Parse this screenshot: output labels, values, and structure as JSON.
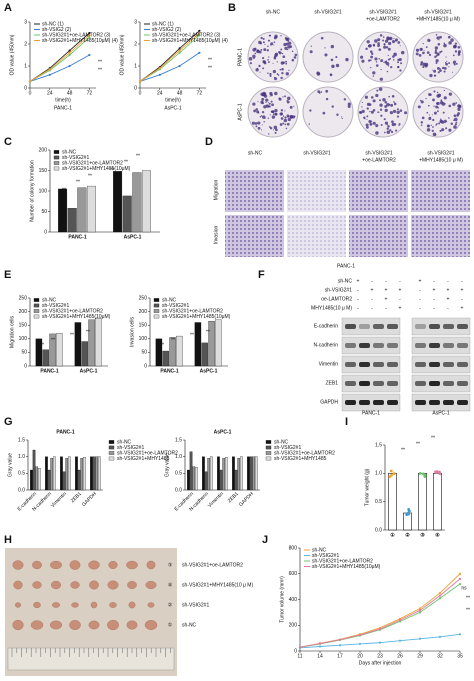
{
  "panel_labels": [
    "A",
    "B",
    "C",
    "D",
    "E",
    "F",
    "G",
    "H",
    "I",
    "J"
  ],
  "chart_data": [
    {
      "type": "line",
      "y_label": "OD value (450nm)",
      "x_label": "time(h)",
      "caption": "PANC-1",
      "x": [
        0,
        24,
        48,
        72
      ],
      "xlim": [
        0,
        80
      ],
      "xticks": [
        0,
        24,
        48,
        72
      ],
      "ylim": [
        0,
        3
      ],
      "yticks": [
        0,
        1,
        2,
        3
      ],
      "legend": "upper left",
      "series": [
        {
          "name": "sh-NC (1)",
          "color": "#222222",
          "values": [
            0.3,
            0.9,
            1.7,
            2.5
          ]
        },
        {
          "name": "sh-VSIG2 (2)",
          "color": "#3a7bd5",
          "values": [
            0.3,
            0.6,
            1.0,
            1.5
          ]
        },
        {
          "name": "sh-VSIG2#1+oe-LAMTOR2 (3)",
          "color": "#6cc46c",
          "values": [
            0.3,
            0.8,
            1.5,
            2.3
          ]
        },
        {
          "name": "sh-VSIG2#1+MHY1485(10μM) (4)",
          "color": "#f0a030",
          "values": [
            0.3,
            0.85,
            1.6,
            2.4
          ]
        }
      ],
      "annotations": [
        "**",
        "**"
      ]
    },
    {
      "type": "line",
      "y_label": "OD value (450nm)",
      "x_label": "time(h)",
      "caption": "AsPC-1",
      "x": [
        0,
        24,
        48,
        72
      ],
      "xlim": [
        0,
        80
      ],
      "xticks": [
        0,
        24,
        48,
        72
      ],
      "ylim": [
        0,
        3
      ],
      "yticks": [
        0,
        1,
        2,
        3
      ],
      "legend": "upper left",
      "series": [
        {
          "name": "sh-NC (1)",
          "color": "#222222",
          "values": [
            0.3,
            0.95,
            1.8,
            2.6
          ]
        },
        {
          "name": "sh-VSIG2 (2)",
          "color": "#3a7bd5",
          "values": [
            0.3,
            0.6,
            1.0,
            1.6
          ]
        },
        {
          "name": "sh-VSIG2#1+oe-LAMTOR2 (3)",
          "color": "#6cc46c",
          "values": [
            0.3,
            0.85,
            1.6,
            2.4
          ]
        },
        {
          "name": "sh-VSIG2#1+MHY1485(10μM) (4)",
          "color": "#f0a030",
          "values": [
            0.3,
            0.9,
            1.7,
            2.5
          ]
        }
      ],
      "annotations": [
        "**",
        "**"
      ]
    },
    {
      "type": "bar",
      "y_label": "Number of colony formation",
      "categories": [
        "PANC-1",
        "AsPC-1"
      ],
      "ylim": [
        0,
        200
      ],
      "yticks": [
        0,
        50,
        100,
        150,
        200
      ],
      "legend": "upper left",
      "series": [
        {
          "name": "sh-NC",
          "color": "#111111",
          "values": [
            105,
            148
          ]
        },
        {
          "name": "sh-VSIG2#1",
          "color": "#555555",
          "values": [
            58,
            88
          ]
        },
        {
          "name": "sh-VSIG2#1+oe-LAMTOR2",
          "color": "#999999",
          "values": [
            108,
            145
          ]
        },
        {
          "name": "sh-VSIG2#1+MHY1485(10μM)",
          "color": "#dddddd",
          "values": [
            112,
            150
          ]
        }
      ],
      "annotations": [
        "**",
        "**",
        "**",
        "**",
        "**",
        "**"
      ]
    },
    {
      "type": "bar",
      "y_label": "Migration cells",
      "categories": [
        "PANC-1",
        "AsPC-1"
      ],
      "ylim": [
        0,
        250
      ],
      "yticks": [
        0,
        50,
        100,
        150,
        200,
        250
      ],
      "legend": "upper left",
      "series": [
        {
          "name": "sh-NC",
          "color": "#111111",
          "values": [
            100,
            160
          ]
        },
        {
          "name": "sh-VSIG2#1",
          "color": "#555555",
          "values": [
            60,
            90
          ]
        },
        {
          "name": "sh-VSIG2#1+oe-LAMTOR2",
          "color": "#999999",
          "values": [
            118,
            170
          ]
        },
        {
          "name": "sh-VSIG2#1+MHY1485(10μM)",
          "color": "#dddddd",
          "values": [
            120,
            175
          ]
        }
      ],
      "annotations": [
        "**",
        "**",
        "**",
        "**"
      ]
    },
    {
      "type": "bar",
      "y_label": "Invasion cells",
      "categories": [
        "PANC-1",
        "AsPC-1"
      ],
      "ylim": [
        0,
        250
      ],
      "yticks": [
        0,
        50,
        100,
        150,
        200,
        250
      ],
      "legend": "upper left",
      "series": [
        {
          "name": "sh-NC",
          "color": "#111111",
          "values": [
            100,
            160
          ]
        },
        {
          "name": "sh-VSIG2#1",
          "color": "#555555",
          "values": [
            55,
            85
          ]
        },
        {
          "name": "sh-VSIG2#1+oe-LAMTOR2",
          "color": "#999999",
          "values": [
            105,
            165
          ]
        },
        {
          "name": "sh-VSIG2#1+MHY1485(10μM)",
          "color": "#dddddd",
          "values": [
            110,
            170
          ]
        }
      ],
      "annotations": [
        "**",
        "**",
        "**",
        "**"
      ]
    },
    {
      "type": "bar",
      "title": "PANC-1",
      "y_label": "Gray value",
      "categories": [
        "E-cadherin",
        "N-cadherin",
        "Vimentin",
        "ZEB1",
        "GAPDH"
      ],
      "ylim": [
        0,
        1.5
      ],
      "yticks": [
        {
          "value": 0,
          "label": "0.0"
        },
        {
          "value": 0.5,
          "label": "0.5"
        },
        {
          "value": 1,
          "label": "1.0"
        },
        {
          "value": 1.5,
          "label": "1.5"
        }
      ],
      "legend": "right",
      "series": [
        {
          "name": "sh-NC",
          "color": "#111111",
          "values": [
            0.6,
            1.0,
            1.0,
            1.0,
            1.0
          ]
        },
        {
          "name": "sh-VSIG2#1",
          "color": "#555555",
          "values": [
            1.2,
            0.6,
            0.55,
            0.6,
            1.0
          ]
        },
        {
          "name": "sh-VSIG2#1+oe-LAMTOR2",
          "color": "#999999",
          "values": [
            0.7,
            0.95,
            0.95,
            0.95,
            1.0
          ]
        },
        {
          "name": "sh-VSIG2#1+MHY1485",
          "color": "#dddddd",
          "values": [
            0.65,
            1.0,
            1.0,
            0.98,
            1.0
          ]
        }
      ]
    },
    {
      "type": "bar",
      "title": "AsPC-1",
      "y_label": "Gray value",
      "categories": [
        "E-cadherin",
        "N-cadherin",
        "Vimentin",
        "ZEB1",
        "GAPDH"
      ],
      "ylim": [
        0,
        1.5
      ],
      "yticks": [
        {
          "value": 0,
          "label": "0.0"
        },
        {
          "value": 0.5,
          "label": "0.5"
        },
        {
          "value": 1,
          "label": "1.0"
        },
        {
          "value": 1.5,
          "label": "1.5"
        }
      ],
      "legend": "right",
      "series": [
        {
          "name": "sh-NC",
          "color": "#111111",
          "values": [
            0.6,
            1.0,
            1.0,
            1.0,
            1.0
          ]
        },
        {
          "name": "sh-VSIG2#1",
          "color": "#555555",
          "values": [
            1.15,
            0.55,
            0.6,
            0.6,
            1.0
          ]
        },
        {
          "name": "sh-VSIG2#1+oe-LAMTOR2",
          "color": "#999999",
          "values": [
            0.7,
            0.95,
            0.95,
            0.95,
            1.0
          ]
        },
        {
          "name": "sh-VSIG2#1+MHY1485",
          "color": "#dddddd",
          "values": [
            0.68,
            1.0,
            0.98,
            1.0,
            1.0
          ]
        }
      ]
    },
    {
      "type": "bar",
      "y_label": "Tumor weight (g)",
      "categories": [
        "①",
        "②",
        "③",
        "④"
      ],
      "values": [
        1.0,
        0.3,
        1.0,
        1.0
      ],
      "colors": [
        "#f0a030",
        "#3a9bd5",
        "#6cc46c",
        "#e07aa0"
      ],
      "ylim": [
        0,
        1.5
      ],
      "yticks": [
        {
          "value": 0,
          "label": "0.0"
        },
        {
          "value": 0.5,
          "label": "0.5"
        },
        {
          "value": 1,
          "label": "1.0"
        },
        {
          "value": 1.5,
          "label": "1.5"
        }
      ],
      "annotations": [
        "**",
        "**",
        "**"
      ]
    },
    {
      "type": "line",
      "y_label": "Tumor volume (mm³)",
      "x_label": "Days after injection",
      "x": [
        11,
        14,
        17,
        20,
        23,
        26,
        29,
        32,
        35
      ],
      "xlim": [
        11,
        35
      ],
      "xticks": [
        11,
        14,
        17,
        20,
        23,
        26,
        29,
        32,
        35
      ],
      "ylim": [
        0,
        800
      ],
      "yticks": [
        0,
        200,
        400,
        600,
        800
      ],
      "legend": "upper left",
      "series": [
        {
          "name": "sh-NC",
          "color": "#f0a030",
          "values": [
            30,
            60,
            90,
            130,
            180,
            250,
            330,
            450,
            600
          ]
        },
        {
          "name": "sh-VSIG2#1",
          "color": "#5ab4e0",
          "values": [
            25,
            35,
            45,
            55,
            65,
            80,
            95,
            110,
            130
          ]
        },
        {
          "name": "sh-VSIG2#1+oe-LAMTOR2",
          "color": "#6cc46c",
          "values": [
            30,
            55,
            85,
            120,
            165,
            230,
            300,
            410,
            520
          ]
        },
        {
          "name": "sh-VSIG2#1+MHY1485(10μM)",
          "color": "#e07aa0",
          "values": [
            30,
            58,
            88,
            125,
            170,
            240,
            315,
            430,
            560
          ]
        }
      ],
      "annotations": [
        "ns",
        "**",
        "**"
      ]
    }
  ],
  "colony_images": {
    "columns": [
      [
        "sh-NC"
      ],
      [
        "sh-VSIG2#1"
      ],
      [
        "sh-VSIG2#1",
        "+oe-LAMTOR2"
      ],
      [
        "sh-VSIG2#1",
        "+MHY1485(10 μ M)"
      ]
    ],
    "rows": [
      "PANC-1",
      "AsPC-1"
    ]
  },
  "transwell_images": {
    "columns": [
      [
        "sh-NC"
      ],
      [
        "sh-VSIG2#1"
      ],
      [
        "sh-VSIG2#1",
        "+oe-LAMTOR2"
      ],
      [
        "sh-VSIG2#1",
        "+MHY1485(10 μ M)"
      ]
    ],
    "rows": [
      "Migration",
      "Invasion"
    ],
    "cell_line": "PANC-1"
  },
  "western_blot": {
    "conditions": [
      {
        "label": "sh-NC",
        "signs": [
          "+",
          "-",
          "-",
          "-",
          "+",
          "-",
          "-",
          "-"
        ]
      },
      {
        "label": "sh-VSIG2#1",
        "signs": [
          "-",
          "+",
          "+",
          "+",
          "-",
          "+",
          "+",
          "+"
        ]
      },
      {
        "label": "oe-LAMTOR2",
        "signs": [
          "-",
          "-",
          "+",
          "-",
          "-",
          "-",
          "+",
          "-"
        ]
      },
      {
        "label": "MHY1485(10 μ M)",
        "signs": [
          "-",
          "-",
          "-",
          "+",
          "-",
          "-",
          "-",
          "+"
        ]
      }
    ],
    "proteins": [
      "E-cadherin",
      "N-cadherin",
      "Vimentin",
      "ZEB1",
      "GAPDH"
    ],
    "cell_lines": [
      "PANC-1",
      "AsPC-1"
    ]
  },
  "tumor_photo": {
    "groups": [
      {
        "label": "sh-VSIG2#1+oe-LAMTOR2",
        "number": "③"
      },
      {
        "label": "sh-VSIG2#1+MHY1485(10 μ M)",
        "number": "④"
      },
      {
        "label": "sh-VSIG2#1",
        "number": "②"
      },
      {
        "label": "sh-NC",
        "number": "①"
      }
    ]
  }
}
